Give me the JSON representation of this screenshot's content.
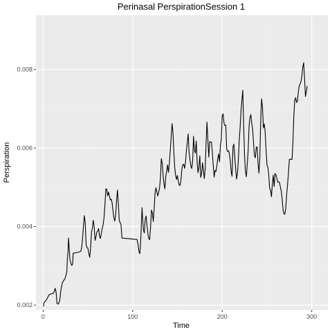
{
  "chart_data": {
    "type": "line",
    "title": "Perinasal PerspirationSession 1",
    "xlabel": "Time",
    "ylabel": "Perspiration",
    "xlim": [
      -8,
      318
    ],
    "ylim": [
      0.00188,
      0.00938
    ],
    "x_ticks": [
      0,
      100,
      200,
      300
    ],
    "x_tick_labels": [
      "0",
      "100",
      "200",
      "300"
    ],
    "y_ticks": [
      0.002,
      0.004,
      0.006,
      0.008
    ],
    "y_tick_labels": [
      "0.002",
      "0.004",
      "0.006",
      "0.008"
    ],
    "grid": true,
    "legend": "none",
    "colors": {
      "panel": "#ebebeb",
      "grid_major": "#ffffff",
      "grid_minor": "#f5f5f5",
      "line": "#000000"
    },
    "series": [
      {
        "points": [
          [
            0.5,
            0.00197
          ],
          [
            1,
            0.00207
          ],
          [
            2.5,
            0.0021
          ],
          [
            3.5,
            0.00213
          ],
          [
            5,
            0.00219
          ],
          [
            6.5,
            0.00226
          ],
          [
            8,
            0.00228
          ],
          [
            9.5,
            0.00229
          ],
          [
            11,
            0.0023
          ],
          [
            12.5,
            0.00235
          ],
          [
            13.5,
            0.00243
          ],
          [
            14.5,
            0.00233
          ],
          [
            15.5,
            0.00204
          ],
          [
            17,
            0.00203
          ],
          [
            18.5,
            0.00211
          ],
          [
            20,
            0.00241
          ],
          [
            21.5,
            0.00257
          ],
          [
            23,
            0.00263
          ],
          [
            24.5,
            0.00268
          ],
          [
            25.5,
            0.00276
          ],
          [
            26.5,
            0.00285
          ],
          [
            27,
            0.00315
          ],
          [
            27.8,
            0.00336
          ],
          [
            28.4,
            0.00371
          ],
          [
            29,
            0.00348
          ],
          [
            30,
            0.00315
          ],
          [
            31,
            0.00307
          ],
          [
            32,
            0.00301
          ],
          [
            33,
            0.00305
          ],
          [
            33.5,
            0.00332
          ],
          [
            40,
            0.00335
          ],
          [
            42,
            0.00337
          ],
          [
            43,
            0.00346
          ],
          [
            44,
            0.00369
          ],
          [
            45,
            0.004
          ],
          [
            46,
            0.00428
          ],
          [
            47,
            0.0041
          ],
          [
            48,
            0.00355
          ],
          [
            49,
            0.00346
          ],
          [
            50,
            0.00345
          ],
          [
            51,
            0.00332
          ],
          [
            52,
            0.00322
          ],
          [
            53,
            0.00345
          ],
          [
            54,
            0.00385
          ],
          [
            55,
            0.00397
          ],
          [
            56,
            0.00416
          ],
          [
            57,
            0.004
          ],
          [
            58,
            0.00365
          ],
          [
            59,
            0.00374
          ],
          [
            60,
            0.00386
          ],
          [
            61,
            0.00389
          ],
          [
            62,
            0.00395
          ],
          [
            63,
            0.00375
          ],
          [
            64,
            0.0037
          ],
          [
            65,
            0.00383
          ],
          [
            66,
            0.00395
          ],
          [
            67,
            0.00405
          ],
          [
            68,
            0.00422
          ],
          [
            69,
            0.00454
          ],
          [
            70,
            0.00495
          ],
          [
            71,
            0.00496
          ],
          [
            72,
            0.00478
          ],
          [
            73,
            0.00488
          ],
          [
            74,
            0.00478
          ],
          [
            75,
            0.00468
          ],
          [
            76,
            0.0047
          ],
          [
            77,
            0.00461
          ],
          [
            78,
            0.00441
          ],
          [
            79,
            0.00423
          ],
          [
            80,
            0.00414
          ],
          [
            81,
            0.0043
          ],
          [
            82,
            0.00465
          ],
          [
            83,
            0.00493
          ],
          [
            84,
            0.0046
          ],
          [
            85,
            0.00416
          ],
          [
            86,
            0.0041
          ],
          [
            87,
            0.00405
          ],
          [
            88,
            0.00371
          ],
          [
            105,
            0.00367
          ],
          [
            106,
            0.00354
          ],
          [
            107,
            0.00337
          ],
          [
            108,
            0.00331
          ],
          [
            109,
            0.00364
          ],
          [
            110,
            0.00421
          ],
          [
            110.5,
            0.00448
          ],
          [
            111,
            0.00425
          ],
          [
            112,
            0.00392
          ],
          [
            113,
            0.00384
          ],
          [
            114,
            0.00418
          ],
          [
            115,
            0.00427
          ],
          [
            116,
            0.00404
          ],
          [
            117,
            0.00382
          ],
          [
            118,
            0.00369
          ],
          [
            119,
            0.00367
          ],
          [
            120,
            0.00399
          ],
          [
            121,
            0.00442
          ],
          [
            122,
            0.00435
          ],
          [
            123,
            0.00413
          ],
          [
            124,
            0.00444
          ],
          [
            125,
            0.00485
          ],
          [
            126,
            0.00499
          ],
          [
            127,
            0.00489
          ],
          [
            128,
            0.00478
          ],
          [
            129,
            0.00487
          ],
          [
            130,
            0.00498
          ],
          [
            131,
            0.00523
          ],
          [
            132,
            0.00573
          ],
          [
            133,
            0.00561
          ],
          [
            134,
            0.00531
          ],
          [
            135,
            0.00508
          ],
          [
            136,
            0.00496
          ],
          [
            137,
            0.00528
          ],
          [
            138,
            0.00541
          ],
          [
            139,
            0.00557
          ],
          [
            140,
            0.00538
          ],
          [
            141,
            0.00561
          ],
          [
            142,
            0.00594
          ],
          [
            143,
            0.00628
          ],
          [
            144,
            0.00662
          ],
          [
            145,
            0.0064
          ],
          [
            146,
            0.0059
          ],
          [
            147,
            0.0055
          ],
          [
            148,
            0.0053
          ],
          [
            149,
            0.0052
          ],
          [
            150,
            0.0053
          ],
          [
            151,
            0.00515
          ],
          [
            152,
            0.00505
          ],
          [
            153,
            0.00505
          ],
          [
            154,
            0.0052
          ],
          [
            155,
            0.00548
          ],
          [
            156,
            0.00558
          ],
          [
            157,
            0.00559
          ],
          [
            158,
            0.00548
          ],
          [
            159,
            0.00564
          ],
          [
            160,
            0.00593
          ],
          [
            161,
            0.00614
          ],
          [
            162,
            0.00636
          ],
          [
            163,
            0.00588
          ],
          [
            164,
            0.00571
          ],
          [
            165,
            0.00553
          ],
          [
            166,
            0.00548
          ],
          [
            167,
            0.00568
          ],
          [
            168,
            0.0063
          ],
          [
            169,
            0.00594
          ],
          [
            170,
            0.00587
          ],
          [
            171,
            0.00618
          ],
          [
            172,
            0.00564
          ],
          [
            173,
            0.00537
          ],
          [
            174,
            0.00552
          ],
          [
            175,
            0.0058
          ],
          [
            176,
            0.00525
          ],
          [
            177,
            0.00535
          ],
          [
            178,
            0.00562
          ],
          [
            179,
            0.00543
          ],
          [
            180,
            0.00522
          ],
          [
            181,
            0.00548
          ],
          [
            182,
            0.00612
          ],
          [
            183,
            0.00666
          ],
          [
            184,
            0.00621
          ],
          [
            185,
            0.00577
          ],
          [
            186,
            0.00616
          ],
          [
            187,
            0.00615
          ],
          [
            188,
            0.00615
          ],
          [
            189,
            0.00588
          ],
          [
            190,
            0.00556
          ],
          [
            191,
            0.00526
          ],
          [
            192,
            0.00543
          ],
          [
            193,
            0.0054
          ],
          [
            194,
            0.00554
          ],
          [
            195,
            0.00572
          ],
          [
            196,
            0.00585
          ],
          [
            197,
            0.00565
          ],
          [
            198,
            0.00606
          ],
          [
            199,
            0.00622
          ],
          [
            200,
            0.00682
          ],
          [
            201,
            0.00687
          ],
          [
            202,
            0.00664
          ],
          [
            203,
            0.00657
          ],
          [
            204,
            0.00658
          ],
          [
            205,
            0.00598
          ],
          [
            206,
            0.00591
          ],
          [
            207,
            0.00593
          ],
          [
            208,
            0.00586
          ],
          [
            209,
            0.00568
          ],
          [
            210,
            0.0054
          ],
          [
            211,
            0.00528
          ],
          [
            212,
            0.00602
          ],
          [
            213,
            0.0061
          ],
          [
            214,
            0.00579
          ],
          [
            215,
            0.00548
          ],
          [
            216,
            0.00521
          ],
          [
            217,
            0.00534
          ],
          [
            218,
            0.00568
          ],
          [
            219,
            0.00619
          ],
          [
            220,
            0.00652
          ],
          [
            221,
            0.00694
          ],
          [
            222,
            0.00722
          ],
          [
            223,
            0.00747
          ],
          [
            224,
            0.00655
          ],
          [
            225,
            0.00579
          ],
          [
            226,
            0.00539
          ],
          [
            227,
            0.00527
          ],
          [
            228,
            0.0056
          ],
          [
            229,
            0.00594
          ],
          [
            230,
            0.00655
          ],
          [
            231,
            0.00677
          ],
          [
            232,
            0.00685
          ],
          [
            233,
            0.00663
          ],
          [
            234,
            0.00647
          ],
          [
            235,
            0.00613
          ],
          [
            236,
            0.00581
          ],
          [
            237,
            0.00575
          ],
          [
            238,
            0.00601
          ],
          [
            239,
            0.00603
          ],
          [
            240,
            0.00562
          ],
          [
            241,
            0.00536
          ],
          [
            242,
            0.00574
          ],
          [
            243,
            0.0067
          ],
          [
            244,
            0.00725
          ],
          [
            245,
            0.00703
          ],
          [
            246,
            0.00651
          ],
          [
            247,
            0.00661
          ],
          [
            248,
            0.00641
          ],
          [
            249,
            0.00596
          ],
          [
            250,
            0.00557
          ],
          [
            251,
            0.00551
          ],
          [
            252,
            0.00531
          ],
          [
            253,
            0.00497
          ],
          [
            254,
            0.00493
          ],
          [
            255,
            0.00476
          ],
          [
            256,
            0.00507
          ],
          [
            257,
            0.00531
          ],
          [
            258,
            0.00502
          ],
          [
            259,
            0.00535
          ],
          [
            260,
            0.00532
          ],
          [
            261,
            0.00523
          ],
          [
            262,
            0.00513
          ],
          [
            263,
            0.00514
          ],
          [
            264,
            0.00512
          ],
          [
            265,
            0.00501
          ],
          [
            266,
            0.0049
          ],
          [
            267,
            0.00469
          ],
          [
            268,
            0.00442
          ],
          [
            269,
            0.00432
          ],
          [
            270,
            0.00432
          ],
          [
            271,
            0.00447
          ],
          [
            272,
            0.00482
          ],
          [
            273,
            0.00507
          ],
          [
            274,
            0.00537
          ],
          [
            275,
            0.00571
          ],
          [
            276,
            0.00572
          ],
          [
            277,
            0.00571
          ],
          [
            278,
            0.00571
          ],
          [
            279,
            0.00615
          ],
          [
            280,
            0.00682
          ],
          [
            281,
            0.00722
          ],
          [
            282,
            0.00728
          ],
          [
            283,
            0.00716
          ],
          [
            284,
            0.00719
          ],
          [
            285,
            0.00742
          ],
          [
            286,
            0.00758
          ],
          [
            287,
            0.00763
          ],
          [
            288,
            0.00769
          ],
          [
            289,
            0.00784
          ],
          [
            290,
            0.00806
          ],
          [
            291,
            0.00817
          ],
          [
            292,
            0.00776
          ],
          [
            293,
            0.00731
          ],
          [
            294,
            0.00744
          ],
          [
            295,
            0.00758
          ]
        ]
      }
    ]
  }
}
